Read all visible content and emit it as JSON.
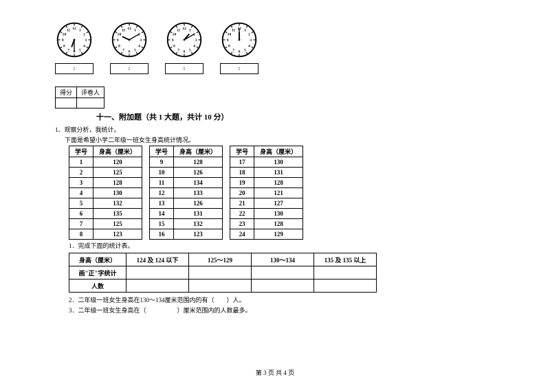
{
  "clocks": [
    {
      "hour_angle": 200,
      "minute_angle": 180,
      "label": ":"
    },
    {
      "hour_angle": 295,
      "minute_angle": 60,
      "label": ":"
    },
    {
      "hour_angle": 40,
      "minute_angle": 60,
      "label": ":"
    },
    {
      "hour_angle": 0,
      "minute_angle": 0,
      "label": ":"
    }
  ],
  "score_cells": [
    "得分",
    "评卷人"
  ],
  "section_title": "十一、附加题（共 1 大题，共计 10 分）",
  "q_prefix": "1、观察分析，我统计。",
  "q_desc": "下面是希望小学二年级一班女生身高统计情况。",
  "headers": [
    "学号",
    "身高（厘米）"
  ],
  "data": [
    [
      [
        "1",
        "120"
      ],
      [
        "9",
        "128"
      ],
      [
        "17",
        "130"
      ]
    ],
    [
      [
        "2",
        "125"
      ],
      [
        "10",
        "126"
      ],
      [
        "18",
        "131"
      ]
    ],
    [
      [
        "3",
        "128"
      ],
      [
        "11",
        "134"
      ],
      [
        "19",
        "128"
      ]
    ],
    [
      [
        "4",
        "130"
      ],
      [
        "12",
        "133"
      ],
      [
        "20",
        "121"
      ]
    ],
    [
      [
        "5",
        "132"
      ],
      [
        "13",
        "126"
      ],
      [
        "21",
        "127"
      ]
    ],
    [
      [
        "6",
        "135"
      ],
      [
        "14",
        "131"
      ],
      [
        "22",
        "130"
      ]
    ],
    [
      [
        "7",
        "125"
      ],
      [
        "15",
        "132"
      ],
      [
        "23",
        "128"
      ]
    ],
    [
      [
        "8",
        "123"
      ],
      [
        "16",
        "123"
      ],
      [
        "24",
        "129"
      ]
    ]
  ],
  "sub1": "1．完成下面的统计表。",
  "stat_table": {
    "row1": [
      "身高（厘米）",
      "124 及 124 以下",
      "125～129",
      "130～134",
      "135 及 135 以上"
    ],
    "row2_label": "画\"正\"字统计",
    "row3_label": "人数"
  },
  "sub2": "2．二年级一班女生身高在130～134厘米范围内的有（　　）人。",
  "sub3": "3．二年级一班女生身高在（　　　　　）厘米范围内的人数最多。",
  "footer": "第 3 页  共 4 页"
}
